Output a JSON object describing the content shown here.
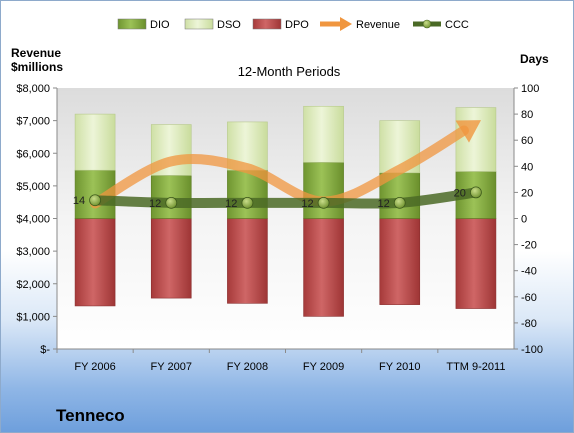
{
  "company": "Tenneco",
  "chart_data": {
    "type": "bar",
    "title": "12-Month Periods",
    "left_axis_title": [
      "Revenue",
      "$millions"
    ],
    "right_axis_title": "Days",
    "categories": [
      "FY 2006",
      "FY 2007",
      "FY 2008",
      "FY 2009",
      "FY 2010",
      "TTM 9-2011"
    ],
    "left_axis": {
      "min": 0,
      "max": 8000,
      "step": 1000,
      "tick_labels": [
        "$-",
        "$1,000",
        "$2,000",
        "$3,000",
        "$4,000",
        "$5,000",
        "$6,000",
        "$7,000",
        "$8,000"
      ]
    },
    "right_axis": {
      "min": -100,
      "max": 100,
      "step": 20,
      "tick_labels": [
        "-100",
        "-80",
        "-60",
        "-40",
        "-20",
        "0",
        "20",
        "40",
        "60",
        "80",
        "100"
      ]
    },
    "legend_position": "top",
    "series": [
      {
        "name": "DIO",
        "axis": "right",
        "kind": "stacked-bar",
        "color": "#7ea33c",
        "values": [
          37,
          33,
          37,
          43,
          35,
          36
        ]
      },
      {
        "name": "DSO",
        "axis": "right",
        "kind": "stacked-bar",
        "color": "#dbe9bc",
        "values": [
          43,
          39,
          37,
          43,
          40,
          49
        ]
      },
      {
        "name": "DPO",
        "axis": "right",
        "kind": "stacked-bar-negative",
        "color": "#b34343",
        "values": [
          -67,
          -61,
          -65,
          -75,
          -66,
          -69
        ]
      },
      {
        "name": "Revenue",
        "axis": "left",
        "kind": "line",
        "color": "#f0a05a",
        "values": [
          4460,
          5750,
          5540,
          4520,
          5500,
          6920
        ]
      },
      {
        "name": "CCC",
        "axis": "right",
        "kind": "line",
        "color": "#4b6a26",
        "values": [
          14,
          12,
          12,
          12,
          12,
          20
        ]
      }
    ],
    "data_labels": [
      "14",
      "12",
      "12",
      "12",
      "12",
      "20"
    ],
    "grid": false
  }
}
